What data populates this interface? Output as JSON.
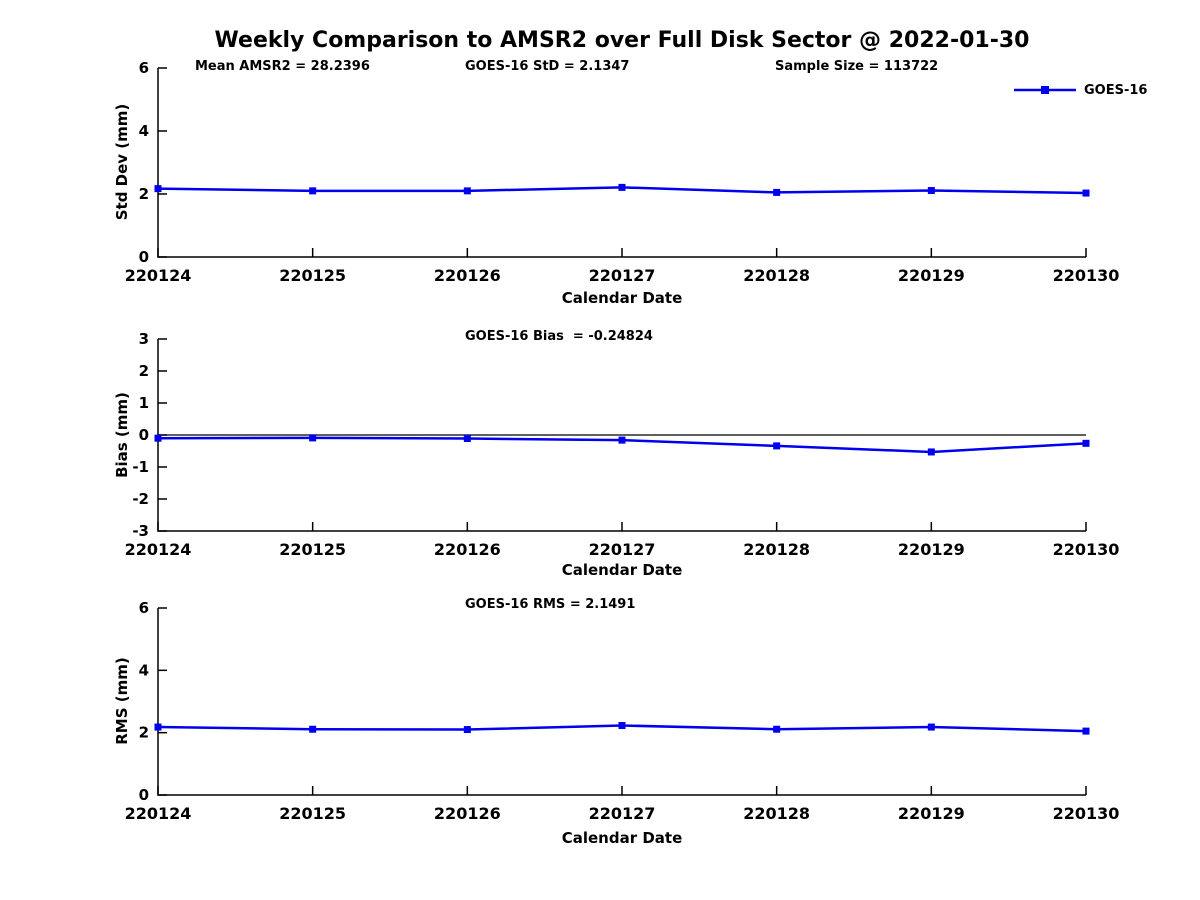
{
  "header": {
    "title": "Weekly Comparison to AMSR2 over Full Disk Sector @ 2022-01-30"
  },
  "colors": {
    "series": "#0000ee",
    "axis": "#000000",
    "zero_line": "#000000",
    "text": "#000000",
    "background": "#ffffff"
  },
  "chart_data": [
    {
      "type": "line",
      "name": "std-dev",
      "x": [
        "220124",
        "220125",
        "220126",
        "220127",
        "220128",
        "220129",
        "220130"
      ],
      "series": [
        {
          "name": "GOES-16",
          "values": [
            2.17,
            2.1,
            2.1,
            2.21,
            2.05,
            2.11,
            2.03
          ]
        }
      ],
      "annotations": [
        "Mean AMSR2 = 28.2396",
        "GOES-16 StD = 2.1347",
        "Sample Size = 113722"
      ],
      "xlabel": "Calendar Date",
      "ylabel": "Std Dev (mm)",
      "ylim": [
        0,
        6
      ],
      "yticks": [
        0,
        2,
        4,
        6
      ],
      "zero_line": false,
      "legend": {
        "label": "GOES-16",
        "position": "northeast"
      },
      "grid": false
    },
    {
      "type": "line",
      "name": "bias",
      "x": [
        "220124",
        "220125",
        "220126",
        "220127",
        "220128",
        "220129",
        "220130"
      ],
      "series": [
        {
          "name": "GOES-16",
          "values": [
            -0.1,
            -0.09,
            -0.11,
            -0.16,
            -0.34,
            -0.53,
            -0.26
          ]
        }
      ],
      "annotations": [
        "GOES-16 Bias  = -0.24824"
      ],
      "xlabel": "Calendar Date",
      "ylabel": "Bias (mm)",
      "ylim": [
        -3,
        3
      ],
      "yticks": [
        3,
        2,
        1,
        0,
        -1,
        -2,
        -3
      ],
      "zero_line": true,
      "grid": false
    },
    {
      "type": "line",
      "name": "rms",
      "x": [
        "220124",
        "220125",
        "220126",
        "220127",
        "220128",
        "220129",
        "220130"
      ],
      "series": [
        {
          "name": "GOES-16",
          "values": [
            2.18,
            2.11,
            2.1,
            2.23,
            2.11,
            2.18,
            2.05
          ]
        }
      ],
      "annotations": [
        "GOES-16 RMS = 2.1491"
      ],
      "xlabel": "Calendar Date",
      "ylabel": "RMS (mm)",
      "ylim": [
        0,
        6
      ],
      "yticks": [
        0,
        2,
        4,
        6
      ],
      "zero_line": false,
      "grid": false
    }
  ]
}
